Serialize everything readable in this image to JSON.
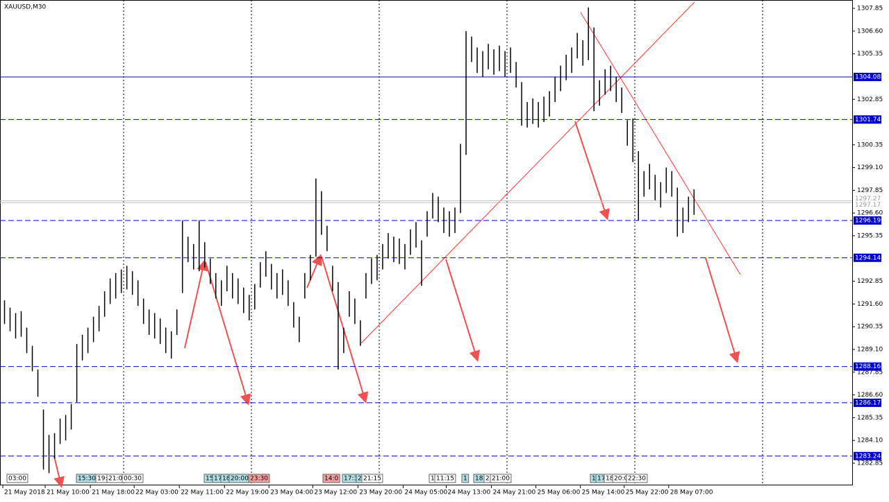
{
  "chart_data": {
    "type": "ohlc",
    "title": "XAUUSD,M30",
    "color": "#000000",
    "high": [
      1291.8,
      1291.4,
      1291.1,
      1291.2,
      1290.3,
      1289.3,
      1288.0,
      1285.8,
      1284.4,
      1284.5,
      1285.3,
      1285.5,
      1286.1,
      1289.4,
      1289.9,
      1290.3,
      1290.9,
      1291.5,
      1292.3,
      1293.0,
      1293.3,
      1293.5,
      1293.7,
      1293.4,
      1292.9,
      1291.9,
      1291.3,
      1291.1,
      1290.8,
      1290.3,
      1290.1,
      1291.3,
      1296.2,
      1295.3,
      1294.9,
      1296.2,
      1295.0,
      1294.1,
      1293.3,
      1292.9,
      1293.7,
      1293.3,
      1293.0,
      1292.5,
      1292.1,
      1292.7,
      1293.9,
      1294.5,
      1293.8,
      1293.3,
      1293.5,
      1292.9,
      1291.7,
      1290.9,
      1293.3,
      1294.3,
      1298.5,
      1297.8,
      1295.9,
      1293.7,
      1292.8,
      1290.3,
      1292.3,
      1291.9,
      1290.7,
      1293.3,
      1294.1,
      1294.3,
      1294.9,
      1295.5,
      1295.3,
      1295.2,
      1294.9,
      1295.7,
      1296.1,
      1295.1,
      1296.7,
      1297.7,
      1297.5,
      1296.9,
      1296.7,
      1296.9,
      1300.4,
      1306.6,
      1306.3,
      1305.7,
      1305.5,
      1305.9,
      1305.6,
      1305.8,
      1305.5,
      1305.7,
      1304.9,
      1303.8,
      1302.7,
      1302.9,
      1302.7,
      1303.0,
      1303.3,
      1304.1,
      1304.7,
      1305.3,
      1305.7,
      1306.5,
      1306.1,
      1307.9,
      1306.8,
      1303.9,
      1304.5,
      1304.7,
      1304.1,
      1303.5,
      1301.7,
      1301.8,
      1300.0,
      1298.9,
      1299.3,
      1298.7,
      1298.3,
      1299.1,
      1298.9,
      1298.0,
      1296.9,
      1297.5,
      1297.9
    ],
    "low": [
      1290.5,
      1290.1,
      1289.7,
      1289.8,
      1288.9,
      1287.9,
      1286.5,
      1282.5,
      1282.3,
      1283.1,
      1283.9,
      1284.1,
      1284.7,
      1286.2,
      1288.5,
      1288.9,
      1289.5,
      1290.1,
      1290.9,
      1291.6,
      1291.9,
      1292.2,
      1292.4,
      1292.1,
      1291.5,
      1290.5,
      1289.9,
      1289.7,
      1289.4,
      1288.9,
      1288.6,
      1289.9,
      1292.2,
      1293.9,
      1293.5,
      1293.4,
      1293.6,
      1292.7,
      1291.9,
      1291.5,
      1292.3,
      1291.9,
      1291.6,
      1291.1,
      1290.7,
      1291.3,
      1292.5,
      1293.1,
      1292.4,
      1291.9,
      1292.1,
      1291.5,
      1290.3,
      1289.5,
      1291.9,
      1292.9,
      1294.2,
      1295.4,
      1294.5,
      1292.3,
      1288.0,
      1288.9,
      1290.9,
      1290.5,
      1289.3,
      1291.9,
      1292.7,
      1292.9,
      1293.5,
      1294.1,
      1293.9,
      1293.8,
      1293.5,
      1294.3,
      1294.7,
      1292.6,
      1295.3,
      1296.3,
      1296.1,
      1295.5,
      1295.3,
      1295.5,
      1296.6,
      1299.8,
      1304.9,
      1304.3,
      1304.1,
      1304.5,
      1304.2,
      1304.4,
      1304.1,
      1304.3,
      1303.5,
      1301.4,
      1301.3,
      1301.5,
      1301.3,
      1301.6,
      1301.9,
      1302.7,
      1303.3,
      1303.9,
      1304.3,
      1305.1,
      1304.7,
      1305.0,
      1302.2,
      1302.5,
      1303.1,
      1303.3,
      1302.7,
      1302.1,
      1300.3,
      1299.4,
      1296.2,
      1297.5,
      1297.9,
      1297.3,
      1296.9,
      1297.7,
      1297.5,
      1295.3,
      1295.5,
      1296.1,
      1296.5
    ],
    "xlim": [
      -0.75,
      152.5
    ],
    "xticks": [
      {
        "value": -0.25,
        "label": "21 May 2018"
      },
      {
        "value": 7.375,
        "label": "21 May 10:00"
      },
      {
        "value": 15.5,
        "label": "21 May 18:00"
      },
      {
        "value": 23.375,
        "label": "22 May 03:00"
      },
      {
        "value": 31.5,
        "label": "22 May 11:00"
      },
      {
        "value": 39.625,
        "label": "22 May 19:00"
      },
      {
        "value": 47.625,
        "label": "23 May 04:00"
      },
      {
        "value": 55.5,
        "label": "23 May 12:00"
      },
      {
        "value": 63.625,
        "label": "23 May 20:00"
      },
      {
        "value": 71.75,
        "label": "24 May 05:00"
      },
      {
        "value": 79.5,
        "label": "24 May 13:00"
      },
      {
        "value": 87.625,
        "label": "24 May 21:00"
      },
      {
        "value": 95.625,
        "label": "25 May 06:00"
      },
      {
        "value": 103.625,
        "label": "25 May 14:00"
      },
      {
        "value": 111.5,
        "label": "25 May 22:00"
      },
      {
        "value": 119.5,
        "label": "28 May 07:00"
      }
    ],
    "ylim": [
      1281.63,
      1308.31
    ],
    "yticks": [
      1307.85,
      {
        "value": 1306.6,
        "label": "1306.60"
      },
      1305.35,
      1302.85,
      {
        "value": 1300.35,
        "label": "1300.35"
      },
      {
        "value": 1299.1,
        "label": "1299.10"
      },
      1297.85,
      {
        "value": 1296.6,
        "label": "1296.60"
      },
      1295.35,
      1292.85,
      {
        "value": 1291.6,
        "label": "1291.60"
      },
      1290.35,
      {
        "value": 1289.1,
        "label": "1289.10"
      },
      1287.85,
      {
        "value": 1286.6,
        "label": "1286.60"
      },
      1285.35,
      {
        "value": 1284.1,
        "label": "1284.10"
      },
      1282.85
    ],
    "hlines": [
      {
        "value": 1304.08,
        "dashed": false
      },
      {
        "value": 1301.74,
        "dashed": true
      },
      {
        "value": 1296.19,
        "dashed": true
      },
      {
        "value": 1294.14,
        "dashed": true
      },
      {
        "value": 1288.16,
        "dashed": true
      },
      {
        "value": 1286.17,
        "dashed": true
      },
      {
        "value": 1283.24,
        "dashed": true
      }
    ],
    "hline_color": "#0000cd",
    "price_lines": [
      1297.27,
      1297.17
    ],
    "event_tags": [
      "03:00",
      "15:30",
      "19:",
      "21:00",
      "00:30",
      "15",
      "17",
      "18",
      "20:00",
      "23:30",
      "14:0",
      "17:3",
      "2",
      "21:15",
      "1",
      "11:15",
      "1",
      "18:",
      "2",
      "21:00",
      "1",
      "17",
      "18",
      "20:0",
      "22:30"
    ]
  }
}
